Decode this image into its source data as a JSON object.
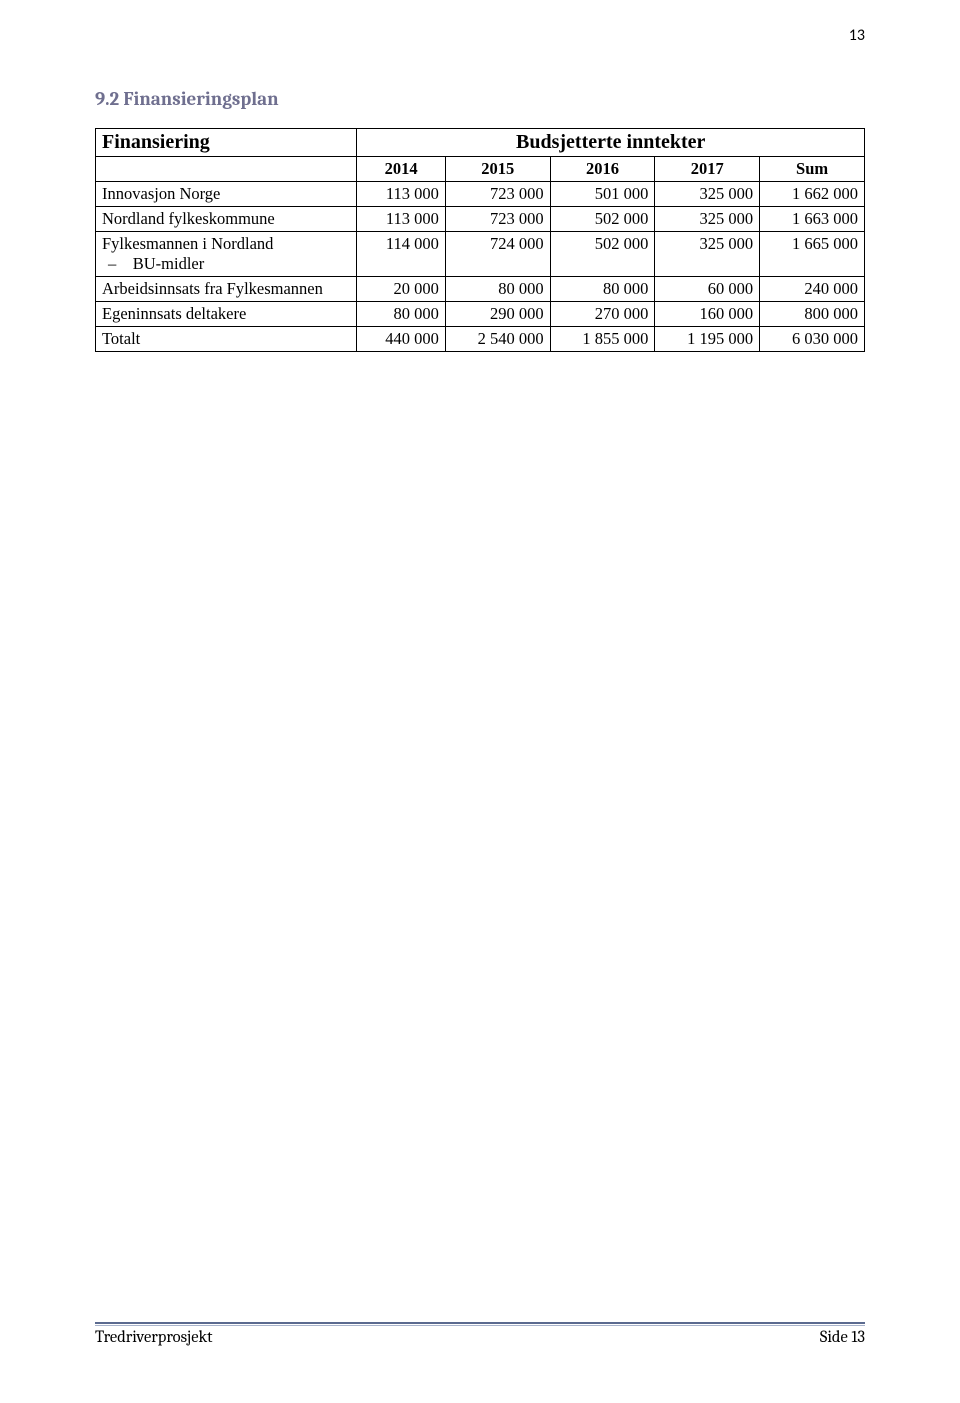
{
  "page_number_top": "13",
  "section_heading": "9.2 Finansieringsplan",
  "table": {
    "header_left": "Finansiering",
    "header_right": "Budsjetterte inntekter",
    "year_columns": [
      "2014",
      "2015",
      "2016",
      "2017",
      "Sum"
    ],
    "rows": [
      {
        "label": "Innovasjon Norge",
        "values": [
          "113 000",
          "723 000",
          "501 000",
          "325 000",
          "1 662 000"
        ]
      },
      {
        "label": "Nordland fylkeskommune",
        "values": [
          "113 000",
          "723 000",
          "502 000",
          "325 000",
          "1 663 000"
        ]
      },
      {
        "label": "Fylkesmannen i Nordland",
        "sublabel": "– BU-midler",
        "values": [
          "114 000",
          "724 000",
          "502 000",
          "325 000",
          "1 665 000"
        ]
      },
      {
        "label": "Arbeidsinnsats fra Fylkesmannen",
        "values": [
          "20 000",
          "80 000",
          "80 000",
          "60 000",
          "240 000"
        ]
      },
      {
        "label": "Egeninnsats deltakere",
        "values": [
          "80 000",
          "290 000",
          "270 000",
          "160 000",
          "800 000"
        ]
      },
      {
        "label": "Totalt",
        "values": [
          "440 000",
          "2 540 000",
          "1 855 000",
          "1 195 000",
          "6 030 000"
        ]
      }
    ]
  },
  "footer": {
    "left": "Tredriverprosjekt",
    "right": "Side 13"
  },
  "colors": {
    "heading_color": "#6f6f8f",
    "border_color": "#000000",
    "footer_rule_top": "#5b6a8f",
    "footer_rule_bottom": "#a9b4cc",
    "text_color": "#000000",
    "background": "#ffffff"
  }
}
